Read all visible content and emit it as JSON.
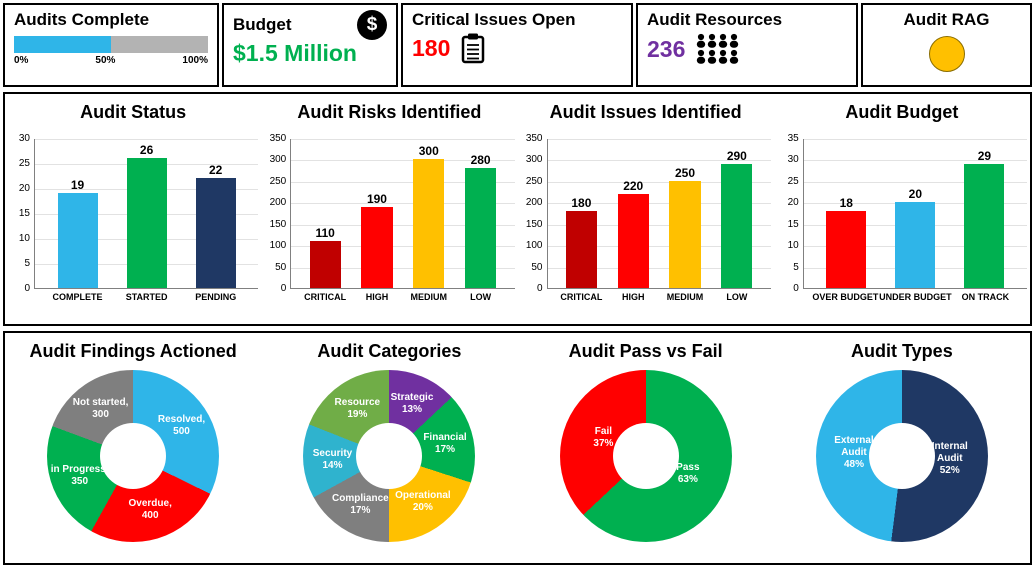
{
  "kpi": {
    "audits_complete": {
      "label": "Audits Complete",
      "progress_pct": 50,
      "bar_color": "#2FB5E8",
      "track_color": "#B3B3B3",
      "scale": [
        "0%",
        "50%",
        "100%"
      ]
    },
    "budget": {
      "label": "Budget",
      "icon": "dollar-icon",
      "icon_symbol": "$",
      "value": "$1.5 Million",
      "value_color": "#00B050"
    },
    "critical_issues": {
      "label": "Critical Issues Open",
      "icon": "clipboard-icon",
      "value": "180",
      "value_color": "#FF0000"
    },
    "audit_resources": {
      "label": "Audit Resources",
      "icon": "people-icon",
      "value": "236",
      "value_color": "#7030A0"
    },
    "audit_rag": {
      "label": "Audit RAG",
      "icon": "rag-circle",
      "status_color": "#FFC000"
    }
  },
  "chart_data": [
    {
      "type": "bar",
      "title": "Audit Status",
      "categories": [
        "COMPLETE",
        "STARTED",
        "PENDING"
      ],
      "values": [
        19,
        26,
        22
      ],
      "colors": [
        "#2FB5E8",
        "#00B050",
        "#1F3864"
      ],
      "ylim": [
        0,
        30
      ],
      "ytick": 5
    },
    {
      "type": "bar",
      "title": "Audit Risks Identified",
      "categories": [
        "CRITICAL",
        "HIGH",
        "MEDIUM",
        "LOW"
      ],
      "values": [
        110,
        190,
        300,
        280
      ],
      "colors": [
        "#C00000",
        "#FF0000",
        "#FFC000",
        "#00B050"
      ],
      "ylim": [
        0,
        350
      ],
      "ytick": 50
    },
    {
      "type": "bar",
      "title": "Audit Issues Identified",
      "categories": [
        "CRITICAL",
        "HIGH",
        "MEDIUM",
        "LOW"
      ],
      "values": [
        180,
        220,
        250,
        290
      ],
      "colors": [
        "#C00000",
        "#FF0000",
        "#FFC000",
        "#00B050"
      ],
      "ylim": [
        0,
        350
      ],
      "ytick": 50
    },
    {
      "type": "bar",
      "title": "Audit Budget",
      "categories": [
        "OVER BUDGET",
        "UNDER BUDGET",
        "ON TRACK"
      ],
      "values": [
        18,
        20,
        29
      ],
      "colors": [
        "#FF0000",
        "#2FB5E8",
        "#00B050"
      ],
      "ylim": [
        0,
        35
      ],
      "ytick": 5
    },
    {
      "type": "pie",
      "title": "Audit Findings Actioned",
      "slices": [
        {
          "label": "Resolved,",
          "value": 500,
          "value_text": "500",
          "color": "#2FB5E8"
        },
        {
          "label": "Overdue,",
          "value": 400,
          "value_text": "400",
          "color": "#FF0000"
        },
        {
          "label": "in Progress,",
          "value": 350,
          "value_text": "350",
          "color": "#00B050"
        },
        {
          "label": "Not started,",
          "value": 300,
          "value_text": "300",
          "color": "#7F7F7F"
        }
      ]
    },
    {
      "type": "pie",
      "title": "Audit Categories",
      "slices": [
        {
          "label": "Strategic",
          "value": 13,
          "value_text": "13%",
          "color": "#7030A0"
        },
        {
          "label": "Financial",
          "value": 17,
          "value_text": "17%",
          "color": "#00B050"
        },
        {
          "label": "Operational",
          "value": 20,
          "value_text": "20%",
          "color": "#FFC000"
        },
        {
          "label": "Compliance",
          "value": 17,
          "value_text": "17%",
          "color": "#7F7F7F"
        },
        {
          "label": "Security",
          "value": 14,
          "value_text": "14%",
          "color": "#2FB3CE"
        },
        {
          "label": "Resource",
          "value": 19,
          "value_text": "19%",
          "color": "#70AD47"
        }
      ]
    },
    {
      "type": "pie",
      "title": "Audit Pass vs Fail",
      "label_radius": 46,
      "slices": [
        {
          "label": "Pass",
          "value": 63,
          "value_text": "63%",
          "color": "#00B050"
        },
        {
          "label": "Fail",
          "value": 37,
          "value_text": "37%",
          "color": "#FF0000"
        }
      ]
    },
    {
      "type": "pie",
      "title": "Audit Types",
      "label_radius": 48,
      "slices": [
        {
          "label": "Internal Audit",
          "value": 52,
          "value_text": "52%",
          "color": "#1F3864"
        },
        {
          "label": "External Audit",
          "value": 48,
          "value_text": "48%",
          "color": "#2FB5E8"
        }
      ]
    }
  ]
}
